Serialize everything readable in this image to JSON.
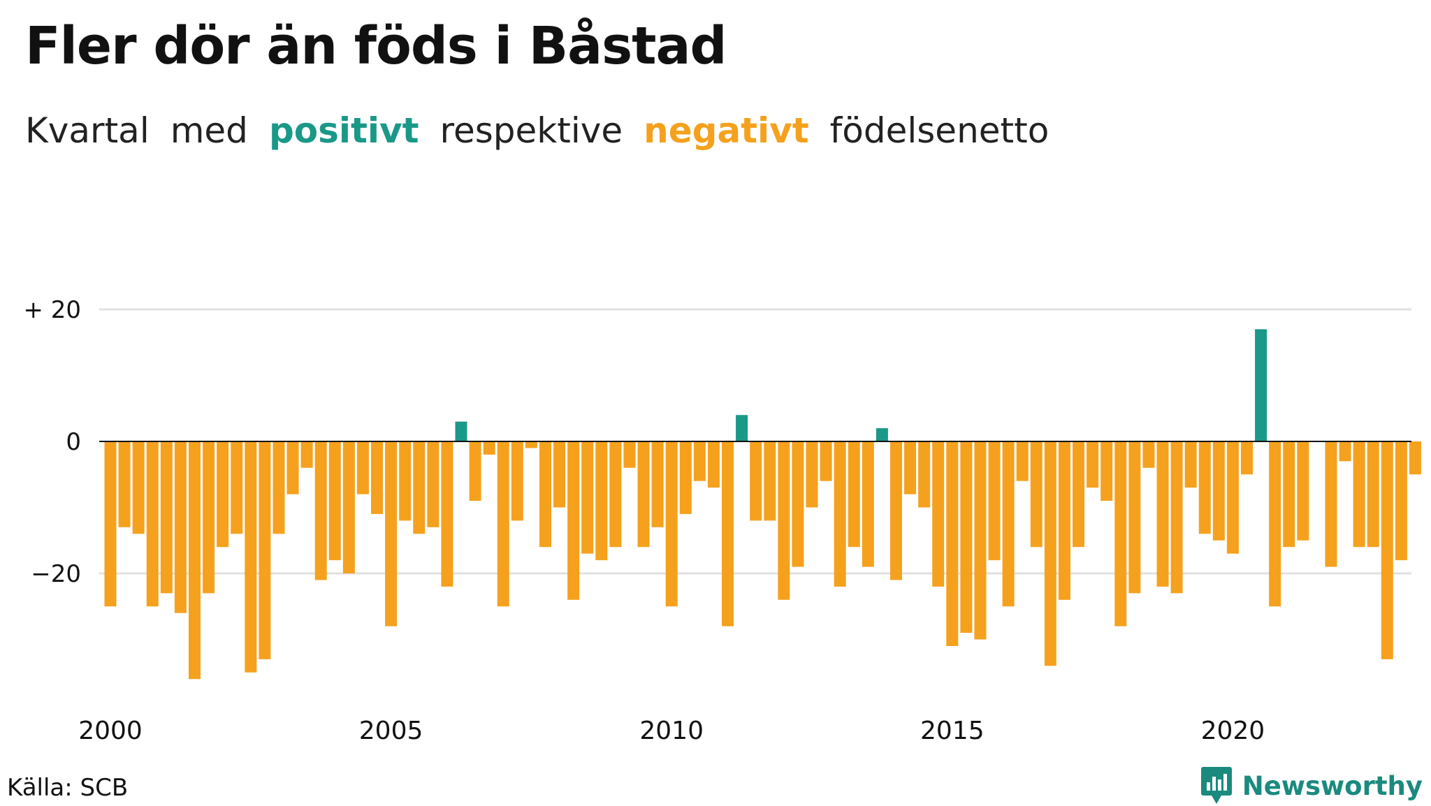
{
  "title": "Fler dör än föds i Båstad",
  "subtitle": {
    "part1": "Kvartal",
    "part2": "med",
    "positive": "positivt",
    "part3": "respektive",
    "negative": "negativt",
    "part4": "födelsenetto"
  },
  "source": "Källa: SCB",
  "brand": "Newsworthy",
  "colors": {
    "positive": "#1a9888",
    "negative": "#f5a11d",
    "grid": "#e0e0e0",
    "zero_line": "#111111"
  },
  "chart_data": {
    "type": "bar",
    "title": "Fler dör än föds i Båstad",
    "xlabel": "",
    "ylabel": "",
    "x_start": "2000 Q1",
    "frequency": "quarterly",
    "ylim": [
      -37,
      20
    ],
    "y_ticks": [
      20,
      0,
      -20
    ],
    "y_tick_labels": [
      "+ 20",
      "0",
      "−20"
    ],
    "x_tick_labels": [
      "2000",
      "2005",
      "2010",
      "2015",
      "2020"
    ],
    "grid": true,
    "values": [
      -25,
      -13,
      -14,
      -25,
      -23,
      -26,
      -36,
      -23,
      -16,
      -14,
      -35,
      -33,
      -14,
      -8,
      -4,
      -21,
      -18,
      -20,
      -8,
      -11,
      -28,
      -12,
      -14,
      -13,
      -22,
      3,
      -9,
      -2,
      -25,
      -12,
      -1,
      -16,
      -10,
      -24,
      -17,
      -18,
      -16,
      -4,
      -16,
      -13,
      -25,
      -11,
      -6,
      -7,
      -28,
      4,
      -12,
      -12,
      -24,
      -19,
      -10,
      -6,
      -22,
      -16,
      -19,
      2,
      -21,
      -8,
      -10,
      -22,
      -31,
      -29,
      -30,
      -18,
      -25,
      -6,
      -16,
      -34,
      -24,
      -16,
      -7,
      -9,
      -28,
      -23,
      -4,
      -22,
      -23,
      -7,
      -14,
      -15,
      -17,
      -5,
      17,
      -25,
      -16,
      -15,
      0,
      -19,
      -3,
      -16,
      -16,
      -33,
      -18,
      -5
    ]
  }
}
